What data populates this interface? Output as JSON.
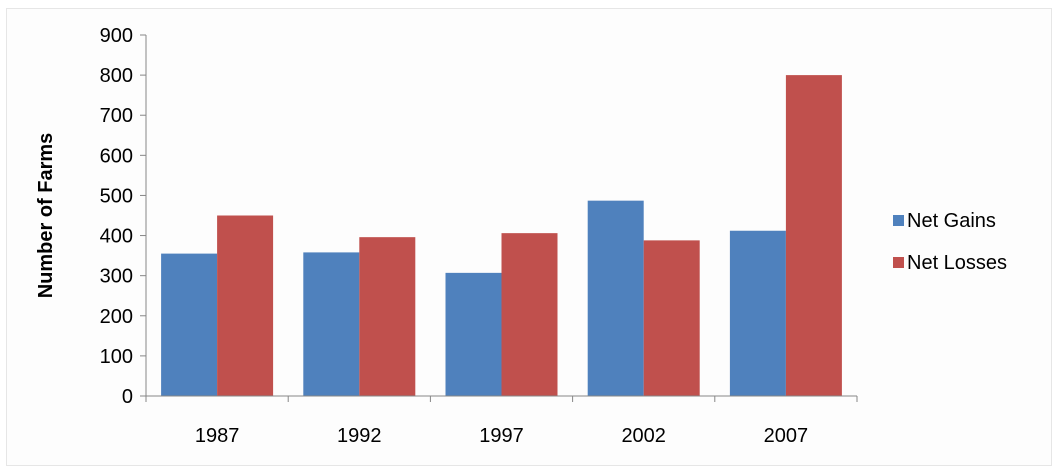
{
  "chart_data": {
    "type": "bar",
    "title": "",
    "xlabel": "",
    "ylabel": "Number of Farms",
    "categories": [
      "1987",
      "1992",
      "1997",
      "2002",
      "2007"
    ],
    "series": [
      {
        "name": "Net Gains",
        "color": "#4f81bd",
        "values": [
          355,
          358,
          307,
          487,
          412
        ]
      },
      {
        "name": "Net Losses",
        "color": "#c0504d",
        "values": [
          450,
          396,
          406,
          388,
          800
        ]
      }
    ],
    "ylim": [
      0,
      900
    ],
    "yticks": [
      "0",
      "100",
      "200",
      "300",
      "400",
      "500",
      "600",
      "700",
      "800",
      "900"
    ],
    "grid": false,
    "legend_position": "right"
  }
}
